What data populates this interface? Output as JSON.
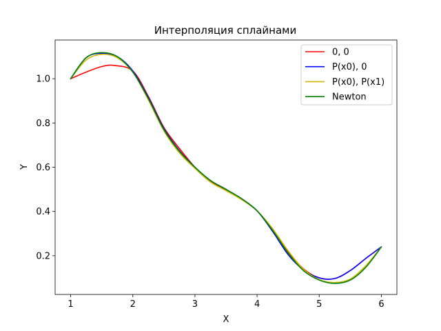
{
  "chart_data": {
    "type": "line",
    "title": "Интерполяция сплайнами",
    "xlabel": "X",
    "ylabel": "Y",
    "xlim": [
      0.75,
      6.25
    ],
    "ylim": [
      0.025,
      1.175
    ],
    "xticks": [
      1,
      2,
      3,
      4,
      5,
      6
    ],
    "yticks": [
      0.2,
      0.4,
      0.6,
      0.8,
      1.0
    ],
    "xtick_labels": [
      "1",
      "2",
      "3",
      "4",
      "5",
      "6"
    ],
    "ytick_labels": [
      "0.2",
      "0.4",
      "0.6",
      "0.8",
      "1.0"
    ],
    "grid": false,
    "legend_position": "top-right",
    "series": [
      {
        "name": "0, 0",
        "color": "#ff0000",
        "x": [
          1.0,
          1.25,
          1.5,
          1.7,
          2.0,
          2.25,
          2.5,
          2.75,
          3.0,
          3.25,
          3.5,
          3.75,
          4.0,
          4.25,
          4.5,
          4.75,
          5.0,
          5.25,
          5.5,
          5.75,
          6.0
        ],
        "y": [
          1.0,
          1.03,
          1.055,
          1.06,
          1.035,
          0.92,
          0.78,
          0.685,
          0.6,
          0.535,
          0.497,
          0.455,
          0.403,
          0.315,
          0.218,
          0.14,
          0.1,
          0.097,
          0.133,
          0.188,
          0.24
        ]
      },
      {
        "name": "P(x0), 0",
        "color": "#0000ff",
        "x": [
          1.0,
          1.25,
          1.5,
          1.75,
          2.0,
          2.25,
          2.5,
          2.75,
          3.0,
          3.25,
          3.5,
          3.75,
          4.0,
          4.25,
          4.5,
          4.75,
          5.0,
          5.25,
          5.5,
          5.75,
          6.0
        ],
        "y": [
          1.0,
          1.095,
          1.115,
          1.1,
          1.035,
          0.915,
          0.775,
          0.675,
          0.6,
          0.54,
          0.5,
          0.458,
          0.403,
          0.31,
          0.205,
          0.135,
          0.1,
          0.097,
          0.133,
          0.188,
          0.24
        ]
      },
      {
        "name": "P(x0), P(x1)",
        "color": "#d4b400",
        "x": [
          1.0,
          1.25,
          1.5,
          1.75,
          2.0,
          2.25,
          2.5,
          2.75,
          3.0,
          3.25,
          3.5,
          3.75,
          4.0,
          4.25,
          4.5,
          4.75,
          5.0,
          5.25,
          5.5,
          5.75,
          6.0
        ],
        "y": [
          1.0,
          1.085,
          1.11,
          1.095,
          1.03,
          0.905,
          0.765,
          0.665,
          0.595,
          0.533,
          0.494,
          0.454,
          0.403,
          0.322,
          0.222,
          0.138,
          0.092,
          0.079,
          0.095,
          0.155,
          0.24
        ]
      },
      {
        "name": "Newton",
        "color": "#008000",
        "x": [
          1.0,
          1.25,
          1.5,
          1.75,
          2.0,
          2.25,
          2.5,
          2.75,
          3.0,
          3.25,
          3.5,
          3.75,
          4.0,
          4.25,
          4.5,
          4.75,
          5.0,
          5.25,
          5.5,
          5.75,
          6.0
        ],
        "y": [
          1.0,
          1.095,
          1.118,
          1.1,
          1.03,
          0.91,
          0.77,
          0.672,
          0.6,
          0.54,
          0.5,
          0.458,
          0.403,
          0.315,
          0.212,
          0.132,
          0.09,
          0.075,
          0.09,
          0.148,
          0.24
        ]
      }
    ]
  }
}
